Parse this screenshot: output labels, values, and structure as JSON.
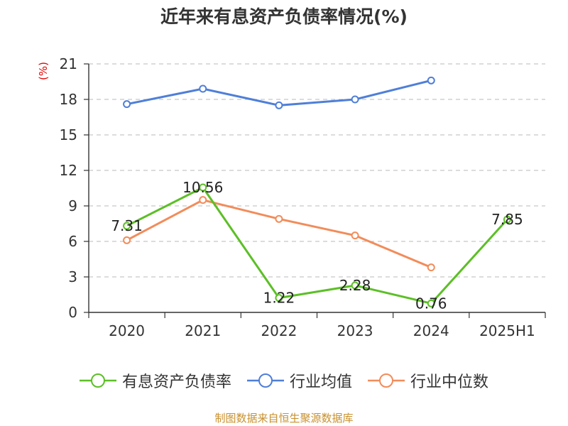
{
  "chart_data": {
    "type": "line",
    "title": "近年来有息资产负债率情况(%)",
    "ylabel": "(%)",
    "xlabel": "",
    "ylim": [
      0,
      21
    ],
    "yticks": [
      0,
      3,
      6,
      9,
      12,
      15,
      18,
      21
    ],
    "categories": [
      "2020",
      "2021",
      "2022",
      "2023",
      "2024",
      "2025H1"
    ],
    "grid": true,
    "legend_position": "bottom",
    "series": [
      {
        "name": "有息资产负债率",
        "color": "#5cbf26",
        "values": [
          7.31,
          10.56,
          1.22,
          2.28,
          0.76,
          7.85
        ],
        "labels": [
          "7.31",
          "10.56",
          "1.22",
          "2.28",
          "0.76",
          "7.85"
        ]
      },
      {
        "name": "行业均值",
        "color": "#4f7fd8",
        "values": [
          17.6,
          18.9,
          17.5,
          18.0,
          19.6,
          null
        ]
      },
      {
        "name": "行业中位数",
        "color": "#f28c5a",
        "values": [
          6.1,
          9.5,
          7.9,
          6.5,
          3.8,
          null
        ]
      }
    ]
  },
  "source_note": "制图数据来自恒生聚源数据库"
}
